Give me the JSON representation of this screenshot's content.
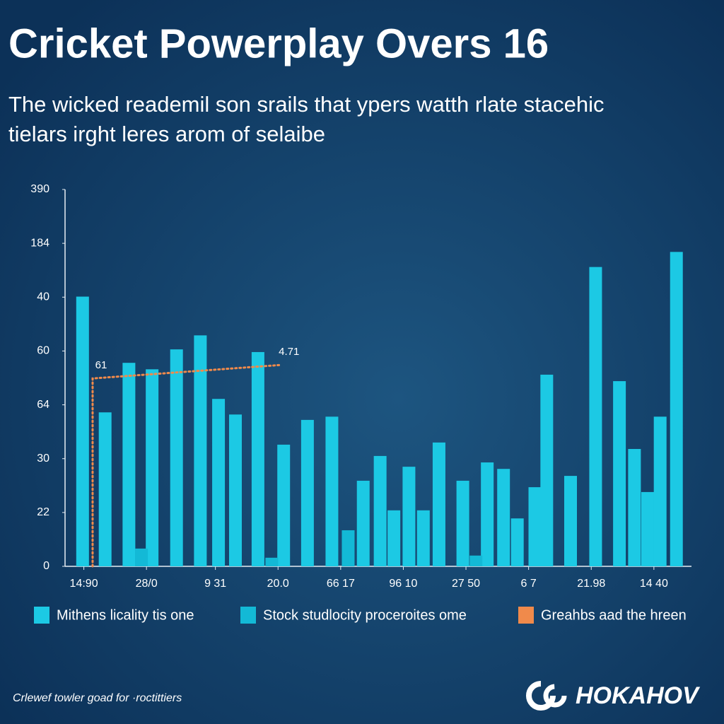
{
  "chart_data": {
    "type": "bar",
    "title": "Cricket Powerplay Overs 16",
    "subtitle": [
      "The wicked reademil son srails that ypers watth rlate stacehic",
      "tielars irght leres arom of selaibe"
    ],
    "xlim": [
      0,
      10
    ],
    "ylim": [
      0,
      7
    ],
    "xticks": [
      {
        "value": 0.3,
        "label": "14:90"
      },
      {
        "value": 1.3,
        "label": "28/0"
      },
      {
        "value": 2.4,
        "label": "9 31"
      },
      {
        "value": 3.4,
        "label": "20.0"
      },
      {
        "value": 4.4,
        "label": "66 17"
      },
      {
        "value": 5.4,
        "label": "96 10"
      },
      {
        "value": 6.4,
        "label": "27 50"
      },
      {
        "value": 7.4,
        "label": "6 7"
      },
      {
        "value": 8.4,
        "label": "21.98"
      },
      {
        "value": 9.4,
        "label": "14 40"
      }
    ],
    "yticks": [
      0,
      {
        "value": 1,
        "label": "22"
      },
      {
        "value": 2,
        "label": "30"
      },
      {
        "value": 3,
        "label": "64"
      },
      {
        "value": 4,
        "label": "60"
      },
      {
        "value": 5,
        "label": "40"
      },
      {
        "value": 6,
        "label": "184"
      },
      {
        "value": 7,
        "label": "390"
      }
    ],
    "series": [
      {
        "name": "Mithens licality tis one",
        "color": "#1cc9e4",
        "x": [
          0.28,
          0.64,
          1.02,
          1.39,
          1.78,
          2.16,
          2.45,
          2.72,
          3.08,
          3.49,
          3.87,
          4.26,
          4.76,
          5.03,
          5.25,
          5.49,
          5.72,
          5.97,
          6.35,
          6.74,
          7.0,
          7.22,
          7.5,
          7.69,
          8.07,
          8.47,
          8.85,
          9.09,
          9.3,
          9.5,
          9.76
        ],
        "values": [
          5.01,
          2.86,
          3.78,
          3.66,
          4.03,
          4.29,
          3.11,
          2.82,
          3.98,
          2.26,
          2.72,
          2.78,
          1.59,
          2.05,
          1.04,
          1.85,
          1.04,
          2.3,
          1.59,
          1.93,
          1.81,
          0.89,
          1.47,
          3.56,
          1.68,
          5.56,
          3.44,
          2.18,
          1.38,
          2.78,
          5.84
        ]
      },
      {
        "name": "Stock studlocity proceroites ome",
        "color": "#13b9d6",
        "x": [
          1.22,
          3.3,
          4.52,
          6.56
        ],
        "values": [
          0.33,
          0.16,
          0.67,
          0.2
        ]
      },
      {
        "name": "Greahbs aad the hreen",
        "color": "#f08a4b",
        "type": "line",
        "x": [
          0.44,
          0.44,
          3.44
        ],
        "values": [
          0,
          3.49,
          3.74
        ],
        "value_labels": [
          null,
          "61",
          "4.71"
        ]
      }
    ],
    "footer": "Crlewef towler goad for ·roctittiers",
    "brand": "HOKAHOV"
  }
}
